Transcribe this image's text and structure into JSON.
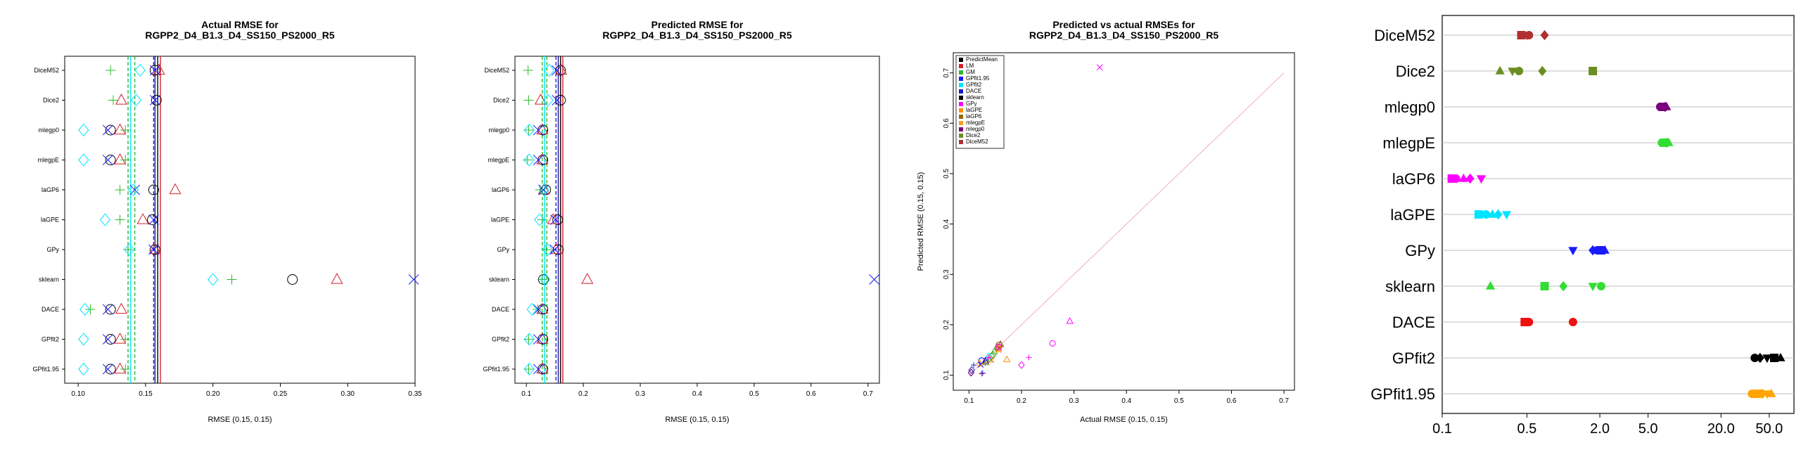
{
  "colors": {
    "LM": "#d61f2c",
    "GM": "#2eb82e",
    "GPfit": "#1a1aff",
    "GPfit1.95": "#1a1aff",
    "GPfit2": "#00e5ff",
    "DACE": "#1a1acc",
    "sklearn": "#000000",
    "GPy": "#ff00ff",
    "laGP": "#996600",
    "laGP6": "#ff00ff",
    "laGPE": "#ff8c00",
    "mlegp": "#f7a21b",
    "mlegp0": "#7b007b",
    "DiceM52": "#b03030",
    "Dice2": "#6b8e23"
  },
  "chart_data": [
    {
      "type": "scatter",
      "title": "Actual RMSE for\nRGPP2_D4_B1.3_D4_SS150_PS2000_R5",
      "xlabel": "RMSE (0.15, 0.15)",
      "ylabel": "",
      "xlim": [
        0.09,
        0.35
      ],
      "xticks": [
        "0.10",
        "0.15",
        "0.20",
        "0.25",
        "0.30",
        "0.35"
      ],
      "xtick_values": [
        0.1,
        0.15,
        0.2,
        0.25,
        0.3,
        0.35
      ],
      "categories": [
        "DiceM52",
        "Dice2",
        "mlegp0",
        "mlegpE",
        "laGP6",
        "laGPE",
        "GPy",
        "sklearn",
        "DACE",
        "GPfit2",
        "GPfit1.95"
      ],
      "vlines": [
        {
          "x": 0.137,
          "color": "#2eb82e",
          "style": "dashed"
        },
        {
          "x": 0.139,
          "color": "#00e5ff",
          "style": "solid"
        },
        {
          "x": 0.142,
          "color": "#2eb82e",
          "style": "dashed"
        },
        {
          "x": 0.156,
          "color": "#1a1aff",
          "style": "dashed"
        },
        {
          "x": 0.157,
          "color": "#1a1a80",
          "style": "solid"
        },
        {
          "x": 0.159,
          "color": "#000000",
          "style": "solid"
        },
        {
          "x": 0.161,
          "color": "#d61f2c",
          "style": "solid"
        }
      ],
      "series": [
        {
          "name": "sklearn",
          "marker": "circle",
          "color": "#000000",
          "values": [
            0.157,
            0.158,
            0.124,
            0.124,
            0.156,
            0.155,
            0.157,
            0.259,
            0.124,
            0.124,
            0.124
          ]
        },
        {
          "name": "LM",
          "marker": "triangle",
          "color": "#d61f2c",
          "values": [
            0.16,
            0.132,
            0.131,
            0.131,
            0.172,
            0.148,
            0.157,
            0.292,
            0.132,
            0.131,
            0.131
          ]
        },
        {
          "name": "GM",
          "marker": "plus",
          "color": "#2eb82e",
          "values": [
            0.124,
            0.126,
            0.135,
            0.135,
            0.131,
            0.131,
            0.137,
            0.214,
            0.109,
            0.135,
            0.135
          ]
        },
        {
          "name": "GPfit",
          "marker": "x",
          "color": "#1a1aff",
          "values": [
            0.157,
            0.157,
            0.122,
            0.122,
            0.142,
            0.156,
            0.156,
            0.349,
            0.122,
            0.122,
            0.122
          ]
        },
        {
          "name": "GPfit2",
          "marker": "diamond",
          "color": "#00e5ff",
          "values": [
            0.146,
            0.143,
            0.104,
            0.104,
            0.141,
            0.12,
            0.138,
            0.2,
            0.105,
            0.104,
            0.104
          ]
        }
      ]
    },
    {
      "type": "scatter",
      "title": "Predicted RMSE for\nRGPP2_D4_B1.3_D4_SS150_PS2000_R5",
      "xlabel": "RMSE (0.15, 0.15)",
      "ylabel": "",
      "xlim": [
        0.08,
        0.72
      ],
      "xticks": [
        "0.1",
        "0.2",
        "0.3",
        "0.4",
        "0.5",
        "0.6",
        "0.7"
      ],
      "xtick_values": [
        0.1,
        0.2,
        0.3,
        0.4,
        0.5,
        0.6,
        0.7
      ],
      "categories": [
        "DiceM52",
        "Dice2",
        "mlegp0",
        "mlegpE",
        "laGP6",
        "laGPE",
        "GPy",
        "sklearn",
        "DACE",
        "GPfit2",
        "GPfit1.95"
      ],
      "vlines": [
        {
          "x": 0.128,
          "color": "#2eb82e",
          "style": "dashed"
        },
        {
          "x": 0.132,
          "color": "#00e5ff",
          "style": "solid"
        },
        {
          "x": 0.136,
          "color": "#2eb82e",
          "style": "dashed"
        },
        {
          "x": 0.152,
          "color": "#1a1aff",
          "style": "dashed"
        },
        {
          "x": 0.156,
          "color": "#1a1a80",
          "style": "solid"
        },
        {
          "x": 0.16,
          "color": "#000000",
          "style": "solid"
        },
        {
          "x": 0.164,
          "color": "#d61f2c",
          "style": "solid"
        }
      ],
      "series": [
        {
          "name": "sklearn",
          "marker": "circle",
          "color": "#000000",
          "values": [
            0.16,
            0.16,
            0.129,
            0.129,
            0.134,
            0.155,
            0.156,
            0.13,
            0.129,
            0.129,
            0.129
          ]
        },
        {
          "name": "LM",
          "marker": "triangle",
          "color": "#d61f2c",
          "values": [
            0.161,
            0.125,
            0.128,
            0.128,
            0.131,
            0.147,
            0.152,
            0.207,
            0.128,
            0.128,
            0.128
          ]
        },
        {
          "name": "GM",
          "marker": "plus",
          "color": "#2eb82e",
          "values": [
            0.103,
            0.104,
            0.104,
            0.102,
            0.124,
            0.128,
            0.135,
            0.128,
            0.12,
            0.104,
            0.104
          ]
        },
        {
          "name": "GPfit",
          "marker": "x",
          "color": "#1a1aff",
          "values": [
            0.153,
            0.154,
            0.121,
            0.121,
            0.13,
            0.151,
            0.15,
            0.711,
            0.121,
            0.121,
            0.121
          ]
        },
        {
          "name": "GPfit2",
          "marker": "diamond",
          "color": "#00e5ff",
          "values": [
            0.14,
            0.138,
            0.105,
            0.105,
            0.131,
            0.123,
            0.137,
            0.133,
            0.11,
            0.105,
            0.105
          ]
        }
      ]
    },
    {
      "type": "scatter",
      "title": "Predicted vs actual RMSEs for\nRGPP2_D4_B1.3_D4_SS150_PS2000_R5",
      "xlabel": "Actual RMSE (0.15, 0.15)",
      "ylabel": "Predicted RMSE (0.15, 0.15)",
      "xlim": [
        0.07,
        0.72
      ],
      "ylim": [
        0.07,
        0.74
      ],
      "xticks": [
        "0.1",
        "0.2",
        "0.3",
        "0.4",
        "0.5",
        "0.6",
        "0.7"
      ],
      "xtick_values": [
        0.1,
        0.2,
        0.3,
        0.4,
        0.5,
        0.6,
        0.7
      ],
      "yticks": [
        "0.1",
        "0.2",
        "0.3",
        "0.4",
        "0.5",
        "0.6",
        "0.7"
      ],
      "ytick_values": [
        0.1,
        0.2,
        0.3,
        0.4,
        0.5,
        0.6,
        0.7
      ],
      "legend_position": "top-left",
      "legend": [
        {
          "label": "PredictMean",
          "color": "#000000"
        },
        {
          "label": "LM",
          "color": "#d61f2c"
        },
        {
          "label": "GM",
          "color": "#2eb82e"
        },
        {
          "label": "GPfit1.95",
          "color": "#1a1aff"
        },
        {
          "label": "GPfit2",
          "color": "#00e5ff"
        },
        {
          "label": "DACE",
          "color": "#1a1acc"
        },
        {
          "label": "sklearn",
          "color": "#000000"
        },
        {
          "label": "GPy",
          "color": "#ff00ff"
        },
        {
          "label": "laGPE",
          "color": "#ff8c00"
        },
        {
          "label": "laGP6",
          "color": "#996600"
        },
        {
          "label": "mlegpE",
          "color": "#f7a21b"
        },
        {
          "label": "mlegp0",
          "color": "#7b007b"
        },
        {
          "label": "Dice2",
          "color": "#6b8e23"
        },
        {
          "label": "DiceM52",
          "color": "#b03030"
        }
      ],
      "points": [
        {
          "x": 0.349,
          "y": 0.711,
          "marker": "x",
          "color": "#ff00ff"
        },
        {
          "x": 0.292,
          "y": 0.207,
          "marker": "triangle",
          "color": "#ff00ff"
        },
        {
          "x": 0.259,
          "y": 0.163,
          "marker": "circle",
          "color": "#ff00ff"
        },
        {
          "x": 0.214,
          "y": 0.135,
          "marker": "plus",
          "color": "#ff00ff"
        },
        {
          "x": 0.2,
          "y": 0.12,
          "marker": "diamond",
          "color": "#ff00ff"
        },
        {
          "x": 0.172,
          "y": 0.131,
          "marker": "triangle",
          "color": "#ff8c00"
        },
        {
          "x": 0.16,
          "y": 0.161,
          "marker": "triangle",
          "color": "#d61f2c"
        },
        {
          "x": 0.157,
          "y": 0.16,
          "marker": "circle",
          "color": "#b03030"
        },
        {
          "x": 0.158,
          "y": 0.16,
          "marker": "circle",
          "color": "#6b8e23"
        },
        {
          "x": 0.157,
          "y": 0.153,
          "marker": "x",
          "color": "#b03030"
        },
        {
          "x": 0.156,
          "y": 0.152,
          "marker": "circle",
          "color": "#ff8c00"
        },
        {
          "x": 0.155,
          "y": 0.155,
          "marker": "circle",
          "color": "#996600"
        },
        {
          "x": 0.148,
          "y": 0.147,
          "marker": "triangle",
          "color": "#2eb82e"
        },
        {
          "x": 0.146,
          "y": 0.14,
          "marker": "diamond",
          "color": "#6b8e23"
        },
        {
          "x": 0.143,
          "y": 0.138,
          "marker": "diamond",
          "color": "#2eb82e"
        },
        {
          "x": 0.142,
          "y": 0.13,
          "marker": "x",
          "color": "#996600"
        },
        {
          "x": 0.141,
          "y": 0.131,
          "marker": "diamond",
          "color": "#f7a21b"
        },
        {
          "x": 0.138,
          "y": 0.137,
          "marker": "diamond",
          "color": "#00e5ff"
        },
        {
          "x": 0.135,
          "y": 0.128,
          "marker": "plus",
          "color": "#2eb82e"
        },
        {
          "x": 0.132,
          "y": 0.125,
          "marker": "triangle",
          "color": "#6b8e23"
        },
        {
          "x": 0.131,
          "y": 0.128,
          "marker": "triangle",
          "color": "#7b007b"
        },
        {
          "x": 0.131,
          "y": 0.124,
          "marker": "plus",
          "color": "#f7a21b"
        },
        {
          "x": 0.124,
          "y": 0.129,
          "marker": "circle",
          "color": "#1a1acc"
        },
        {
          "x": 0.124,
          "y": 0.129,
          "marker": "circle",
          "color": "#1a1aff"
        },
        {
          "x": 0.122,
          "y": 0.121,
          "marker": "x",
          "color": "#1a1acc"
        },
        {
          "x": 0.122,
          "y": 0.121,
          "marker": "x",
          "color": "#1a1aff"
        },
        {
          "x": 0.126,
          "y": 0.104,
          "marker": "plus",
          "color": "#1a1aff"
        },
        {
          "x": 0.131,
          "y": 0.128,
          "marker": "triangle",
          "color": "#1a1acc"
        },
        {
          "x": 0.124,
          "y": 0.103,
          "marker": "plus",
          "color": "#b03030"
        },
        {
          "x": 0.105,
          "y": 0.11,
          "marker": "diamond",
          "color": "#1a1acc"
        },
        {
          "x": 0.104,
          "y": 0.105,
          "marker": "diamond",
          "color": "#1a1aff"
        },
        {
          "x": 0.104,
          "y": 0.105,
          "marker": "diamond",
          "color": "#7b007b"
        },
        {
          "x": 0.12,
          "y": 0.123,
          "marker": "diamond",
          "color": "#ff8c00"
        },
        {
          "x": 0.109,
          "y": 0.12,
          "marker": "plus",
          "color": "#1a1acc"
        },
        {
          "x": 0.131,
          "y": 0.124,
          "marker": "plus",
          "color": "#996600"
        },
        {
          "x": 0.137,
          "y": 0.135,
          "marker": "plus",
          "color": "#ff00ff"
        },
        {
          "x": 0.156,
          "y": 0.15,
          "marker": "x",
          "color": "#ff8c00"
        },
        {
          "x": 0.157,
          "y": 0.156,
          "marker": "circle",
          "color": "#ff00ff"
        }
      ]
    },
    {
      "type": "scatter",
      "title": "",
      "xlabel": "",
      "ylabel": "",
      "xscale": "log",
      "xlim": [
        0.1,
        80
      ],
      "xticks": [
        "0.1",
        "0.5",
        "2.0",
        "5.0",
        "20.0",
        "50.0"
      ],
      "xtick_values": [
        0.1,
        0.5,
        2.0,
        5.0,
        20.0,
        50.0
      ],
      "categories": [
        "DiceM52",
        "Dice2",
        "mlegp0",
        "mlegpE",
        "laGP6",
        "laGPE",
        "GPy",
        "sklearn",
        "DACE",
        "GPfit2",
        "GPfit1.95"
      ],
      "grid": "horizontal",
      "rows": [
        {
          "color": "#b03030",
          "points": [
            {
              "x": 0.45,
              "m": "square"
            },
            {
              "x": 0.5,
              "m": "tri-down"
            },
            {
              "x": 0.52,
              "m": "circle"
            },
            {
              "x": 0.7,
              "m": "diamond"
            }
          ]
        },
        {
          "color": "#6b8e23",
          "points": [
            {
              "x": 0.3,
              "m": "triangle"
            },
            {
              "x": 0.38,
              "m": "tri-down"
            },
            {
              "x": 0.43,
              "m": "circle"
            },
            {
              "x": 0.67,
              "m": "diamond"
            },
            {
              "x": 1.75,
              "m": "square"
            }
          ]
        },
        {
          "color": "#7b007b",
          "points": [
            {
              "x": 6.3,
              "m": "circle"
            },
            {
              "x": 6.6,
              "m": "square"
            },
            {
              "x": 6.9,
              "m": "diamond"
            },
            {
              "x": 7.1,
              "m": "triangle"
            }
          ]
        },
        {
          "color": "#33dd33",
          "points": [
            {
              "x": 6.5,
              "m": "circle"
            },
            {
              "x": 6.8,
              "m": "square"
            },
            {
              "x": 7.1,
              "m": "diamond"
            },
            {
              "x": 7.4,
              "m": "triangle"
            }
          ]
        },
        {
          "color": "#ff00ff",
          "points": [
            {
              "x": 0.12,
              "m": "square"
            },
            {
              "x": 0.13,
              "m": "circle"
            },
            {
              "x": 0.15,
              "m": "triangle"
            },
            {
              "x": 0.17,
              "m": "diamond"
            },
            {
              "x": 0.21,
              "m": "tri-down"
            }
          ]
        },
        {
          "color": "#00e5ff",
          "points": [
            {
              "x": 0.2,
              "m": "square"
            },
            {
              "x": 0.23,
              "m": "circle"
            },
            {
              "x": 0.26,
              "m": "triangle"
            },
            {
              "x": 0.29,
              "m": "diamond"
            },
            {
              "x": 0.34,
              "m": "tri-down"
            }
          ]
        },
        {
          "color": "#1a1aff",
          "points": [
            {
              "x": 1.2,
              "m": "tri-down"
            },
            {
              "x": 1.75,
              "m": "diamond"
            },
            {
              "x": 1.9,
              "m": "circle"
            },
            {
              "x": 2.05,
              "m": "square"
            },
            {
              "x": 2.2,
              "m": "triangle"
            }
          ]
        },
        {
          "color": "#33dd33",
          "points": [
            {
              "x": 0.25,
              "m": "triangle"
            },
            {
              "x": 0.7,
              "m": "square"
            },
            {
              "x": 1.0,
              "m": "diamond"
            },
            {
              "x": 1.75,
              "m": "tri-down"
            },
            {
              "x": 2.05,
              "m": "circle"
            }
          ]
        },
        {
          "color": "#ee1111",
          "points": [
            {
              "x": 0.48,
              "m": "square"
            },
            {
              "x": 0.52,
              "m": "circle"
            },
            {
              "x": 1.2,
              "m": "circle"
            }
          ]
        },
        {
          "color": "#000000",
          "points": [
            {
              "x": 38,
              "m": "circle"
            },
            {
              "x": 42,
              "m": "diamond"
            },
            {
              "x": 48,
              "m": "tri-down"
            },
            {
              "x": 55,
              "m": "square"
            },
            {
              "x": 62,
              "m": "triangle"
            }
          ]
        },
        {
          "color": "#ffa500",
          "points": [
            {
              "x": 36,
              "m": "circle"
            },
            {
              "x": 40,
              "m": "square"
            },
            {
              "x": 44,
              "m": "diamond"
            },
            {
              "x": 48,
              "m": "tri-down"
            },
            {
              "x": 52,
              "m": "triangle"
            }
          ]
        }
      ]
    }
  ]
}
